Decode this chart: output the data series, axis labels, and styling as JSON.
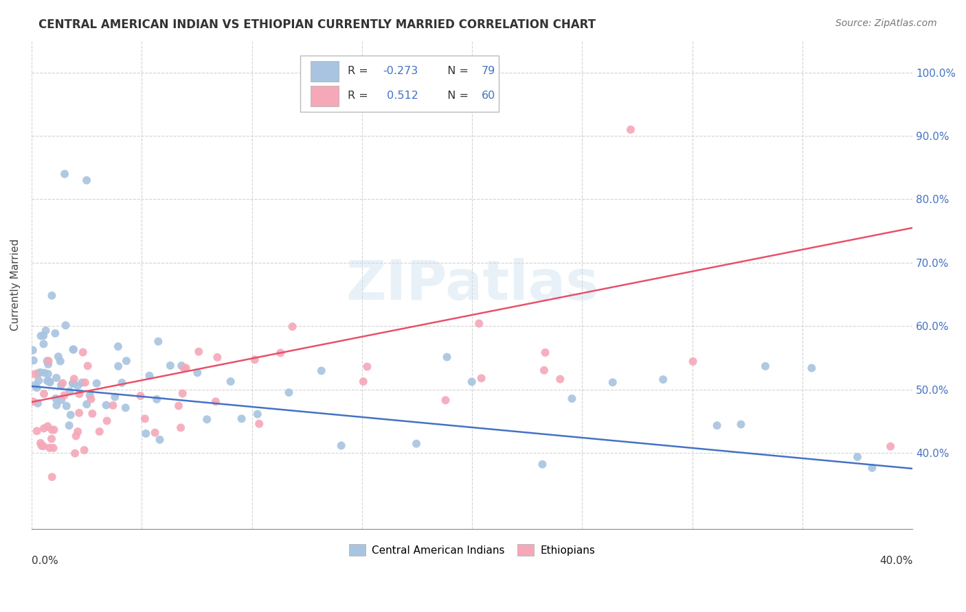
{
  "title": "CENTRAL AMERICAN INDIAN VS ETHIOPIAN CURRENTLY MARRIED CORRELATION CHART",
  "source": "Source: ZipAtlas.com",
  "ylabel": "Currently Married",
  "watermark": "ZIPatlas",
  "xlim": [
    0.0,
    0.4
  ],
  "ylim": [
    0.28,
    1.05
  ],
  "yticks": [
    0.4,
    0.5,
    0.6,
    0.7,
    0.8,
    0.9,
    1.0
  ],
  "ytick_labels": [
    "40.0%",
    "50.0%",
    "60.0%",
    "70.0%",
    "80.0%",
    "90.0%",
    "100.0%"
  ],
  "blue_R": -0.273,
  "blue_N": 79,
  "pink_R": 0.512,
  "pink_N": 60,
  "blue_color": "#a8c4e0",
  "pink_color": "#f4a8b8",
  "blue_line_color": "#4472c4",
  "pink_line_color": "#e8506a",
  "legend_label_blue": "Central American Indians",
  "legend_label_pink": "Ethiopians",
  "blue_line_x0": 0.0,
  "blue_line_y0": 0.505,
  "blue_line_x1": 0.4,
  "blue_line_y1": 0.375,
  "pink_line_x0": 0.0,
  "pink_line_y0": 0.48,
  "pink_line_x1": 0.4,
  "pink_line_y1": 0.755,
  "background_color": "#ffffff",
  "grid_color": "#c8c8c8"
}
